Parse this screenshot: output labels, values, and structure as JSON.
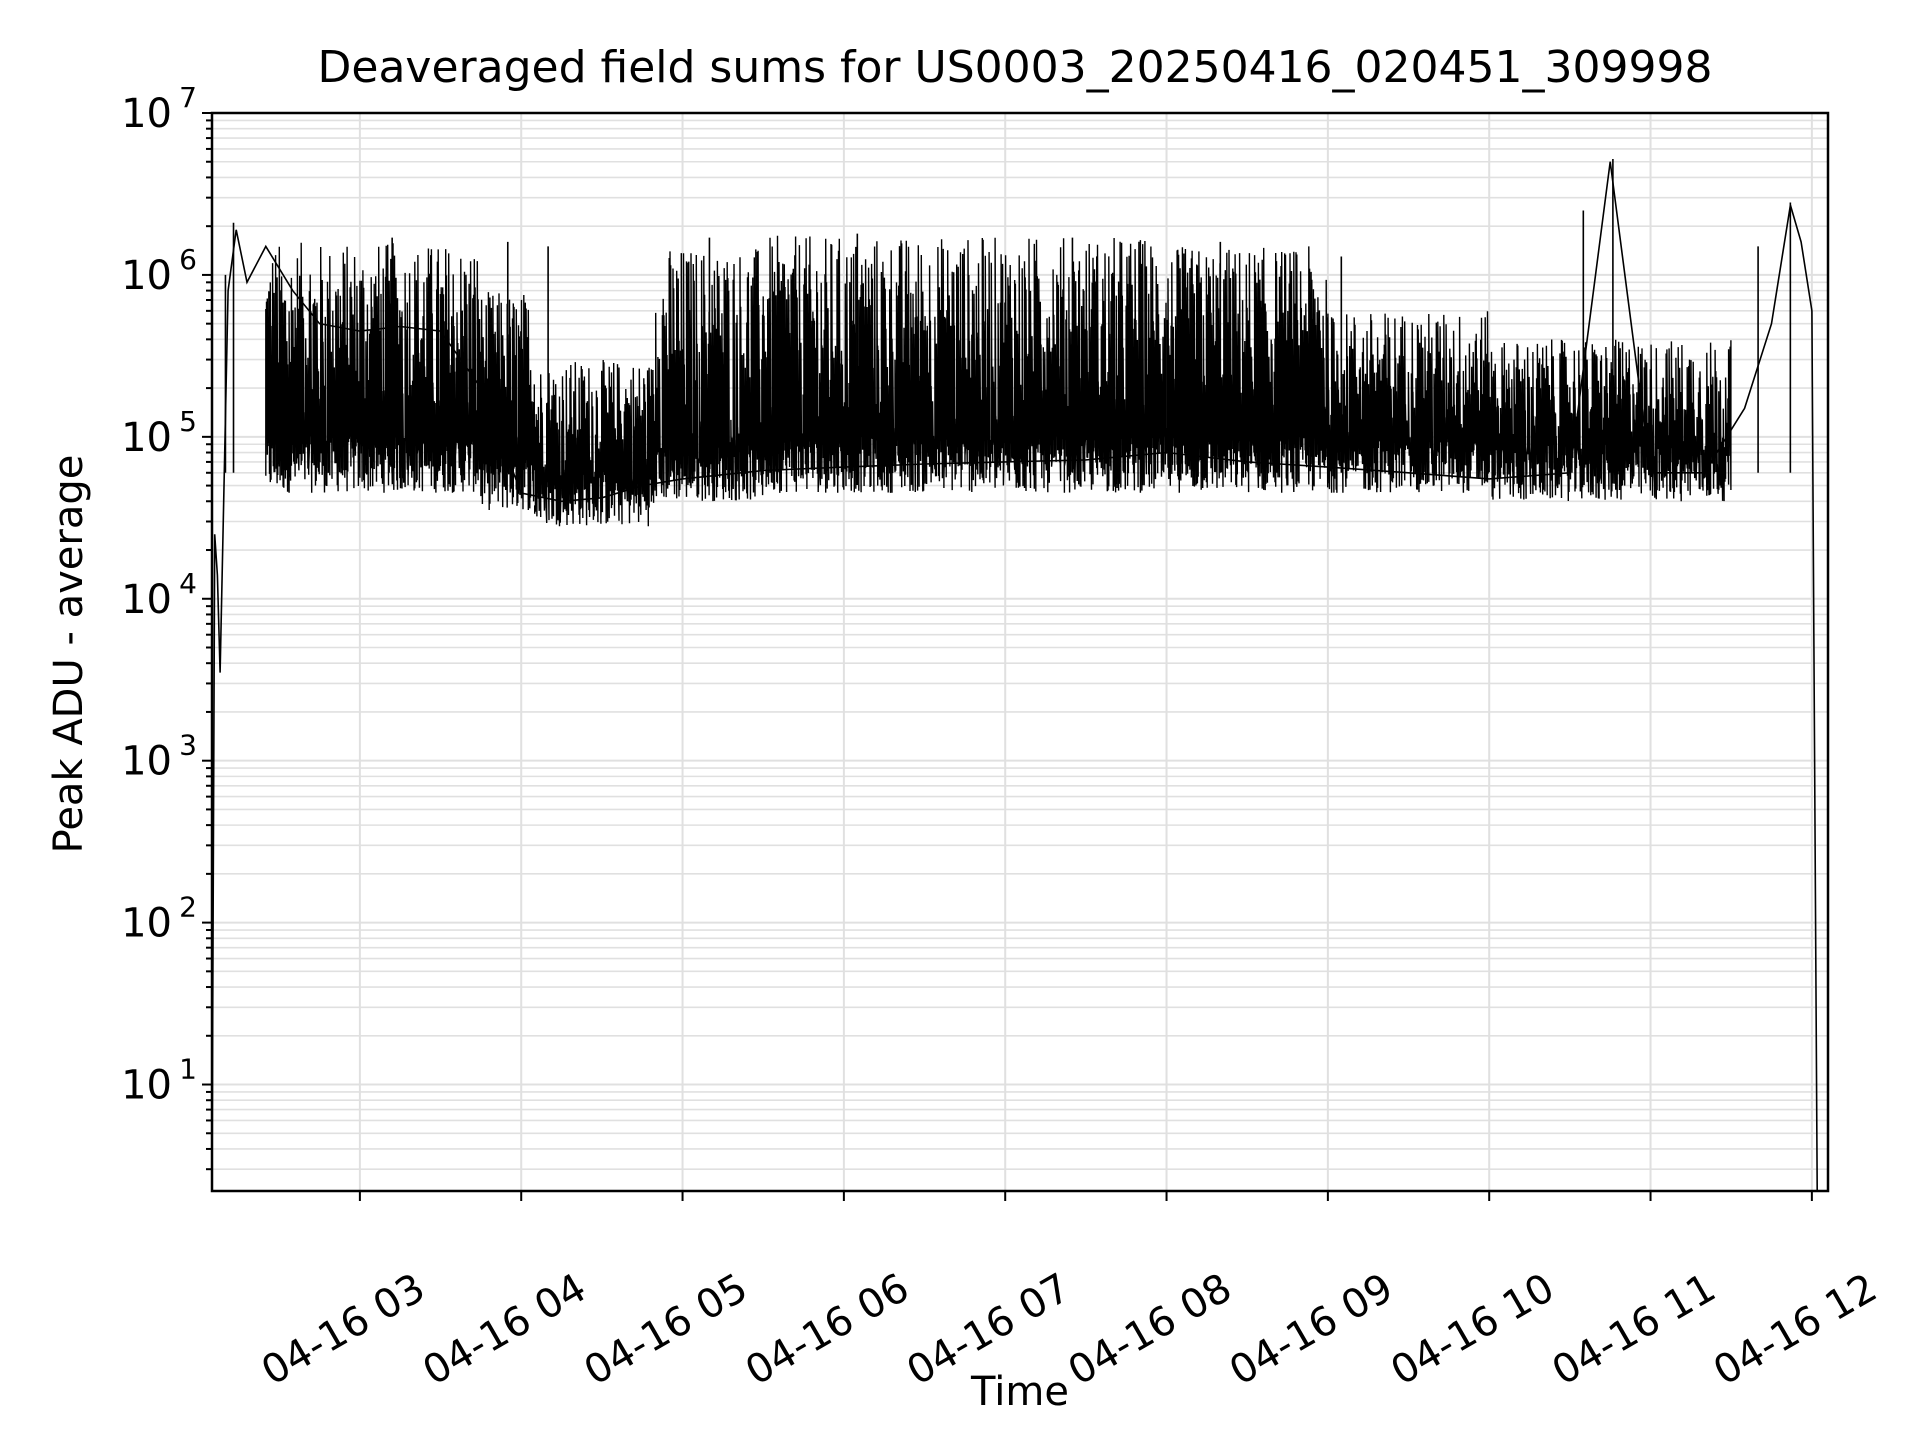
{
  "chart_data": {
    "type": "line",
    "title": "Deaveraged field sums for US0003_20250416_020451_309998",
    "xlabel": "Time",
    "ylabel": "Peak ADU - average",
    "y_scale": "log",
    "ylim": [
      2.2,
      10000000
    ],
    "xlim": [
      "2025-04-16 02:05",
      "2025-04-16 12:06"
    ],
    "x_ticks": [
      {
        "time": "2025-04-16 03:00",
        "label": "04-16 03"
      },
      {
        "time": "2025-04-16 04:00",
        "label": "04-16 04"
      },
      {
        "time": "2025-04-16 05:00",
        "label": "04-16 05"
      },
      {
        "time": "2025-04-16 06:00",
        "label": "04-16 06"
      },
      {
        "time": "2025-04-16 07:00",
        "label": "04-16 07"
      },
      {
        "time": "2025-04-16 08:00",
        "label": "04-16 08"
      },
      {
        "time": "2025-04-16 09:00",
        "label": "04-16 09"
      },
      {
        "time": "2025-04-16 10:00",
        "label": "04-16 10"
      },
      {
        "time": "2025-04-16 11:00",
        "label": "04-16 11"
      },
      {
        "time": "2025-04-16 12:00",
        "label": "04-16 12"
      }
    ],
    "y_ticks": [
      {
        "value": 10,
        "base": "10",
        "exp": "1"
      },
      {
        "value": 100,
        "base": "10",
        "exp": "2"
      },
      {
        "value": 1000,
        "base": "10",
        "exp": "3"
      },
      {
        "value": 10000,
        "base": "10",
        "exp": "4"
      },
      {
        "value": 100000,
        "base": "10",
        "exp": "5"
      },
      {
        "value": 1000000,
        "base": "10",
        "exp": "6"
      },
      {
        "value": 10000000,
        "base": "10",
        "exp": "7"
      }
    ],
    "grid": true,
    "line_color": "#000000",
    "grid_color": "#e0e0e0",
    "series": [
      {
        "points": [
          [
            "2025-04-16 02:05",
            2.2
          ],
          [
            "2025-04-16 02:06",
            25000
          ],
          [
            "2025-04-16 02:07",
            14000
          ],
          [
            "2025-04-16 02:08",
            3500
          ],
          [
            "2025-04-16 02:11",
            800000
          ],
          [
            "2025-04-16 02:14",
            1900000
          ],
          [
            "2025-04-16 02:18",
            900000
          ],
          [
            "2025-04-16 02:25",
            1500000
          ],
          [
            "2025-04-16 02:35",
            800000
          ],
          [
            "2025-04-16 02:45",
            500000
          ],
          [
            "2025-04-16 03:00",
            450000
          ],
          [
            "2025-04-16 03:15",
            480000
          ],
          [
            "2025-04-16 03:30",
            450000
          ],
          [
            "2025-04-16 03:45",
            200000
          ],
          [
            "2025-04-16 04:00",
            45000
          ],
          [
            "2025-04-16 04:15",
            40000
          ],
          [
            "2025-04-16 04:30",
            42000
          ],
          [
            "2025-04-16 04:45",
            50000
          ],
          [
            "2025-04-16 05:00",
            55000
          ],
          [
            "2025-04-16 05:30",
            62000
          ],
          [
            "2025-04-16 06:00",
            65000
          ],
          [
            "2025-04-16 06:30",
            68000
          ],
          [
            "2025-04-16 07:00",
            70000
          ],
          [
            "2025-04-16 07:30",
            72000
          ],
          [
            "2025-04-16 08:00",
            80000
          ],
          [
            "2025-04-16 08:30",
            70000
          ],
          [
            "2025-04-16 09:00",
            65000
          ],
          [
            "2025-04-16 09:30",
            60000
          ],
          [
            "2025-04-16 10:00",
            55000
          ],
          [
            "2025-04-16 10:30",
            60000
          ],
          [
            "2025-04-16 10:45",
            5000000
          ],
          [
            "2025-04-16 11:00",
            60000
          ],
          [
            "2025-04-16 11:20",
            60000
          ],
          [
            "2025-04-16 11:35",
            150000
          ],
          [
            "2025-04-16 11:45",
            500000
          ],
          [
            "2025-04-16 11:52",
            2700000
          ],
          [
            "2025-04-16 11:56",
            1600000
          ],
          [
            "2025-04-16 12:00",
            600000
          ],
          [
            "2025-04-16 12:02",
            2.2
          ]
        ],
        "spikes": [
          [
            "2025-04-16 02:10",
            1000000
          ],
          [
            "2025-04-16 02:13",
            2100000
          ],
          [
            "2025-04-16 03:12",
            1700000
          ],
          [
            "2025-04-16 03:55",
            1600000
          ],
          [
            "2025-04-16 04:10",
            1500000
          ],
          [
            "2025-04-16 05:10",
            1700000
          ],
          [
            "2025-04-16 06:05",
            1800000
          ],
          [
            "2025-04-16 07:25",
            1700000
          ],
          [
            "2025-04-16 08:20",
            1600000
          ],
          [
            "2025-04-16 09:05",
            1300000
          ],
          [
            "2025-04-16 10:35",
            2500000
          ],
          [
            "2025-04-16 10:46",
            5200000
          ],
          [
            "2025-04-16 11:40",
            1500000
          ],
          [
            "2025-04-16 11:52",
            2800000
          ]
        ],
        "band": [
          {
            "from": "2025-04-16 02:25",
            "to": "2025-04-16 03:45",
            "low": 45000,
            "high": 1600000
          },
          {
            "from": "2025-04-16 03:45",
            "to": "2025-04-16 04:05",
            "low": 35000,
            "high": 800000
          },
          {
            "from": "2025-04-16 04:05",
            "to": "2025-04-16 04:50",
            "low": 28000,
            "high": 300000
          },
          {
            "from": "2025-04-16 04:50",
            "to": "2025-04-16 05:30",
            "low": 40000,
            "high": 1500000
          },
          {
            "from": "2025-04-16 05:30",
            "to": "2025-04-16 08:00",
            "low": 45000,
            "high": 1750000
          },
          {
            "from": "2025-04-16 08:00",
            "to": "2025-04-16 09:00",
            "low": 45000,
            "high": 1500000
          },
          {
            "from": "2025-04-16 09:00",
            "to": "2025-04-16 10:00",
            "low": 45000,
            "high": 600000
          },
          {
            "from": "2025-04-16 10:00",
            "to": "2025-04-16 11:30",
            "low": 40000,
            "high": 400000
          }
        ]
      }
    ]
  }
}
